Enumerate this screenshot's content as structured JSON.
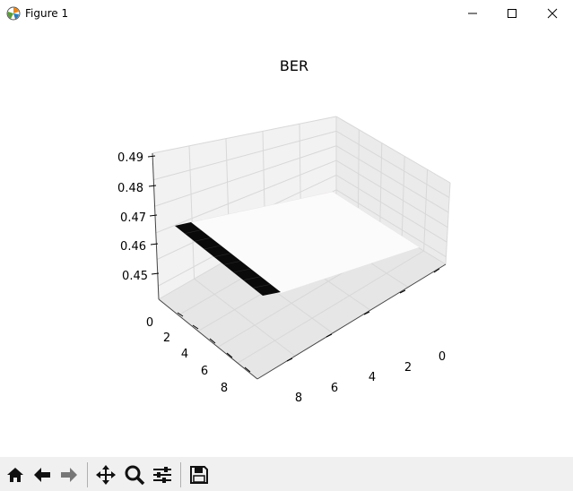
{
  "window": {
    "title": "Figure 1"
  },
  "chart_data": {
    "type": "surface",
    "title": "BER",
    "xlabel": "",
    "ylabel": "",
    "zlabel": "",
    "x_ticks": [
      "0",
      "2",
      "4",
      "6",
      "8"
    ],
    "y_ticks": [
      "0",
      "2",
      "4",
      "6",
      "8"
    ],
    "z_ticks": [
      "0.45",
      "0.46",
      "0.47",
      "0.48",
      "0.49"
    ],
    "zlim": [
      0.445,
      0.49
    ],
    "surface_value": 0.467,
    "grid": true,
    "colors": {
      "surface": "#fcfbfb",
      "edge_strip": "#0a0a0a",
      "pane": "#f2f2f2",
      "grid": "#d8d8d8"
    }
  },
  "toolbar": {
    "buttons": [
      {
        "name": "home-icon"
      },
      {
        "name": "back-icon"
      },
      {
        "name": "forward-icon"
      },
      {
        "name": "pan-icon"
      },
      {
        "name": "zoom-icon"
      },
      {
        "name": "configure-icon"
      },
      {
        "name": "save-icon"
      }
    ]
  }
}
